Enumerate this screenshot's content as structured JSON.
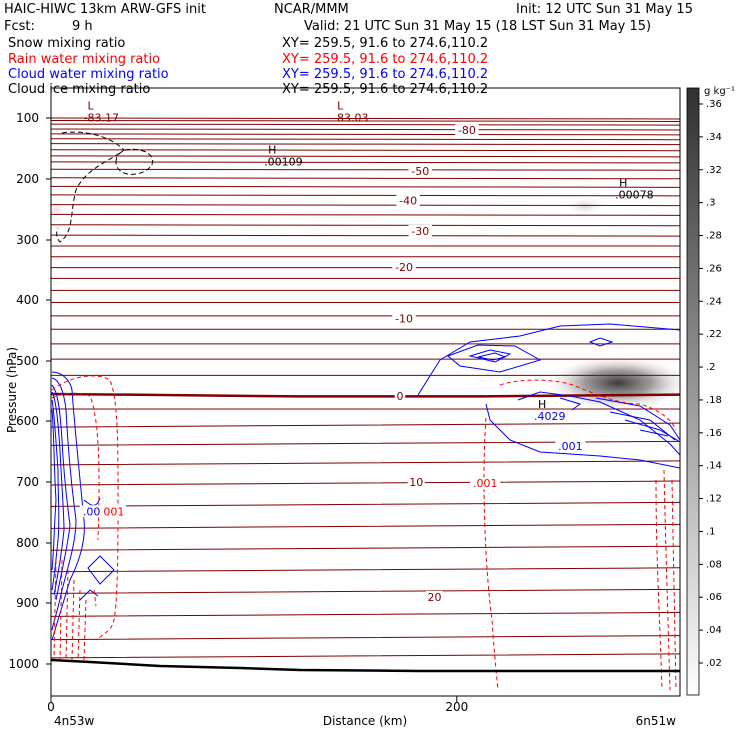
{
  "header": {
    "title": "HAIC-HIWC 13km ARW-GFS init",
    "org": "NCAR/MMM",
    "init": "Init: 12 UTC Sun 31 May 15",
    "fcst_label": "Fcst:",
    "fcst_value": "9 h",
    "valid": "Valid: 21 UTC Sun 31 May 15 (18 LST Sun 31 May 15)",
    "fields": [
      {
        "name": "Snow mixing ratio",
        "range": "XY= 259.5, 91.6 to 274.6,110.2",
        "color": "#000000"
      },
      {
        "name": "Rain water mixing ratio",
        "range": "XY= 259.5, 91.6 to 274.6,110.2",
        "color": "#ff0000"
      },
      {
        "name": "Cloud water mixing ratio",
        "range": "XY= 259.5, 91.6 to 274.6,110.2",
        "color": "#0000ff"
      },
      {
        "name": "Cloud ice mixing ratio",
        "range": "XY= 259.5, 91.6 to 274.6,110.2",
        "color": "#000000"
      }
    ]
  },
  "chart_data": {
    "type": "heatmap",
    "xlabel": "Distance (km)",
    "ylabel": "Pressure (hPa)",
    "x_ticks": [
      0,
      200
    ],
    "xlim": [
      0,
      310
    ],
    "y_ticks": [
      100,
      200,
      300,
      400,
      500,
      600,
      700,
      800,
      900,
      1000
    ],
    "ylim": [
      1050,
      50
    ],
    "y_scale": "approx-log-pressure",
    "left_endpoint": "4n53w",
    "right_endpoint": "6n51w",
    "colorbar": {
      "unit": "g kg⁻¹",
      "levels": [
        ".02",
        ".04",
        ".06",
        ".08",
        ".1",
        ".12",
        ".14",
        ".16",
        ".18",
        ".2",
        ".22",
        ".24",
        ".26",
        ".28",
        ".3",
        ".32",
        ".34",
        ".36"
      ]
    },
    "isotherm_labels": [
      {
        "text": "-80",
        "x": 205,
        "p": 120
      },
      {
        "text": "-50",
        "x": 182,
        "p": 187
      },
      {
        "text": "-40",
        "x": 176,
        "p": 235
      },
      {
        "text": "-30",
        "x": 182,
        "p": 285
      },
      {
        "text": "-20",
        "x": 174,
        "p": 345
      },
      {
        "text": "-10",
        "x": 174,
        "p": 430
      },
      {
        "text": "0",
        "x": 172,
        "p": 558
      },
      {
        "text": "10",
        "x": 180,
        "p": 700
      },
      {
        "text": "20",
        "x": 189,
        "p": 890
      }
    ],
    "extrema": [
      {
        "letter": "L",
        "value": "-83.17",
        "x": 18,
        "p": 86
      },
      {
        "letter": "L",
        "value": "-83.03",
        "x": 141,
        "p": 86
      },
      {
        "letter": "H",
        "value": ".00109",
        "x": 107,
        "p": 158
      },
      {
        "letter": "H",
        "value": ".00078",
        "x": 280,
        "p": 212
      },
      {
        "letter": "H",
        "value": ".4029",
        "x": 240,
        "p": 578
      }
    ],
    "contour_labels": [
      {
        "text": ".001",
        "x": 214,
        "p": 702,
        "color": "#ff0000"
      },
      {
        "text": ".001",
        "x": 256,
        "p": 641,
        "color": "#0000ff"
      },
      {
        "text": ".00",
        "x": 20,
        "p": 748,
        "color": "#0000ff"
      },
      {
        "text": "001",
        "x": 31,
        "p": 748,
        "color": "#ff0000"
      }
    ]
  }
}
